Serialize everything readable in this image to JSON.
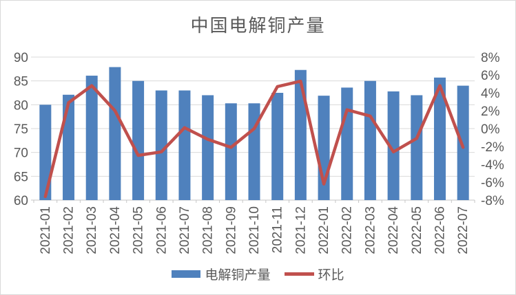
{
  "title": "中国电解铜产量",
  "colors": {
    "bar": "#4f81bd",
    "line": "#c0504d",
    "gridline": "#d9d9d9",
    "axis_line": "#c6c6c6",
    "axis_text": "#595959"
  },
  "legend": {
    "items": [
      {
        "label": "电解铜产量",
        "marker": "bar"
      },
      {
        "label": "环比",
        "marker": "line"
      }
    ],
    "position": "bottom"
  },
  "chart_data": {
    "type": "bar",
    "subtype": "bar+line combo, dual axis",
    "title": "中国电解铜产量",
    "categories": [
      "2021-01",
      "2021-02",
      "2021-03",
      "2021-04",
      "2021-05",
      "2021-06",
      "2021-07",
      "2021-08",
      "2021-09",
      "2021-10",
      "2021-11",
      "2021-12",
      "2022-01",
      "2022-02",
      "2022-03",
      "2022-04",
      "2022-05",
      "2022-06",
      "2022-07"
    ],
    "series": [
      {
        "name": "电解铜产量",
        "type": "bar",
        "axis": "left",
        "color": "#4f81bd",
        "values": [
          80,
          82.1,
          86.1,
          87.9,
          85,
          83,
          83,
          82,
          80.3,
          80.3,
          82.5,
          87.3,
          81.9,
          83.6,
          85,
          82.8,
          82,
          85.7,
          84
        ]
      },
      {
        "name": "环比",
        "type": "line",
        "axis": "right",
        "color": "#c0504d",
        "values": [
          -7.6,
          2.9,
          4.8,
          2.0,
          -3.0,
          -2.6,
          0.1,
          -1.2,
          -2.1,
          0.0,
          4.7,
          5.3,
          -6.2,
          2.1,
          1.4,
          -2.6,
          -1.1,
          4.8,
          -2.1
        ]
      }
    ],
    "left_axis": {
      "min": 60,
      "max": 90,
      "step": 5,
      "labels": [
        "90",
        "85",
        "80",
        "75",
        "70",
        "65",
        "60"
      ]
    },
    "right_axis": {
      "min": -8,
      "max": 8,
      "step": 2,
      "labels": [
        "8%",
        "6%",
        "4%",
        "2%",
        "0%",
        "-2%",
        "-4%",
        "-6%",
        "-8%"
      ]
    },
    "grid": true,
    "legend_position": "bottom",
    "x_label_rotation": -90
  }
}
